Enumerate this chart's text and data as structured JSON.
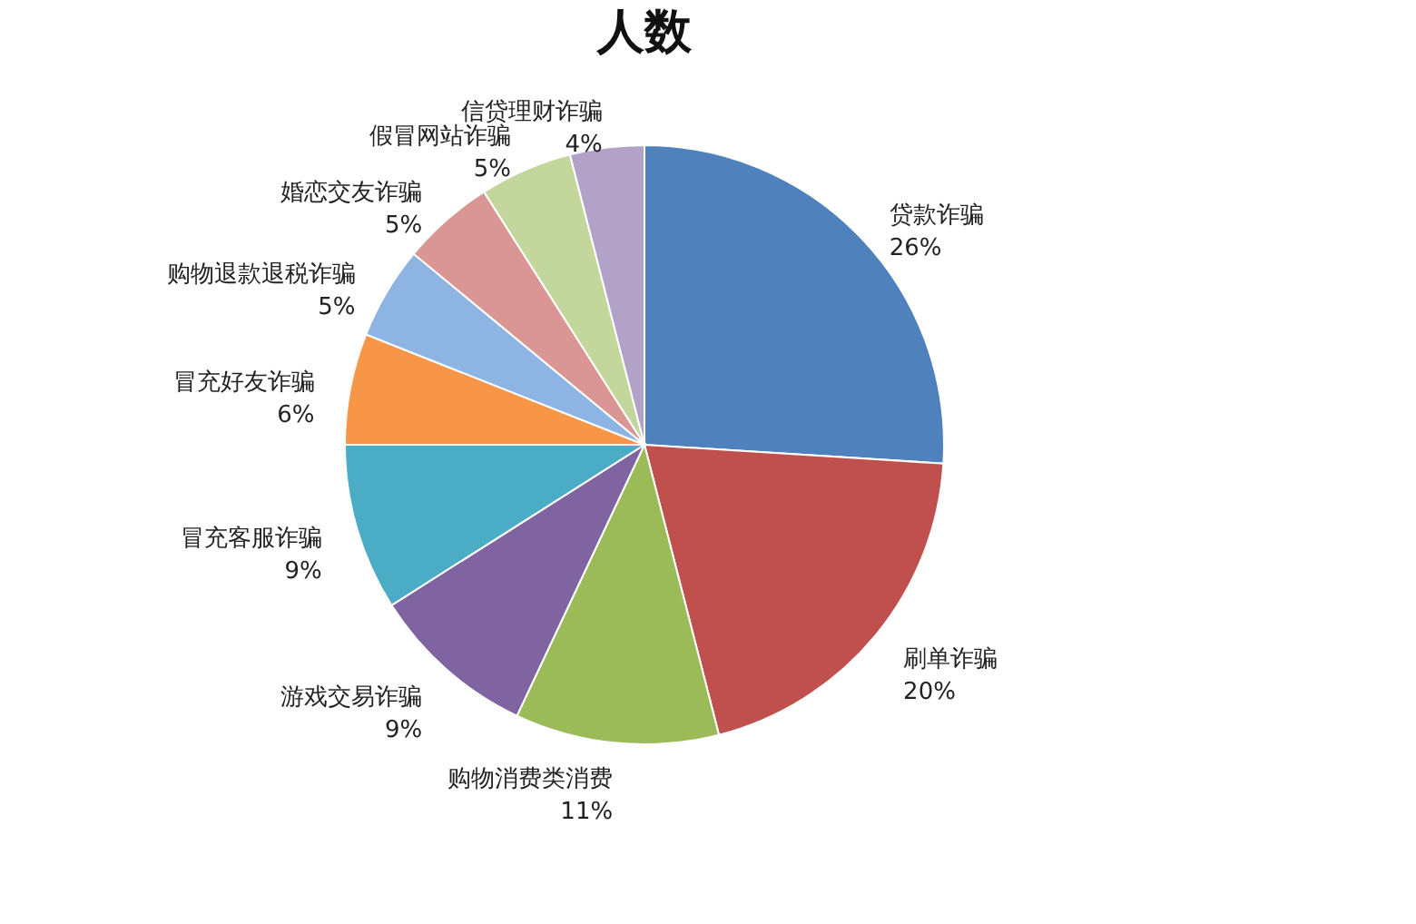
{
  "chart_data": {
    "type": "pie",
    "title": "人数",
    "categories": [
      "贷款诈骗",
      "刷单诈骗",
      "购物消费类消费",
      "游戏交易诈骗",
      "冒充客服诈骗",
      "冒充好友诈骗",
      "购物退款退税诈骗",
      "婚恋交友诈骗",
      "假冒网站诈骗",
      "信贷理财诈骗"
    ],
    "values": [
      26,
      20,
      11,
      9,
      9,
      6,
      5,
      5,
      5,
      4
    ],
    "colors": [
      "#4f81bd",
      "#c0504d",
      "#9bbb59",
      "#8064a2",
      "#4bacc6",
      "#f79646",
      "#8eb4e3",
      "#d99694",
      "#c3d69b",
      "#b3a2c7"
    ],
    "value_labels": [
      "26%",
      "20%",
      "11%",
      "9%",
      "9%",
      "6%",
      "5%",
      "5%",
      "5%",
      "4%"
    ],
    "legend": false
  }
}
